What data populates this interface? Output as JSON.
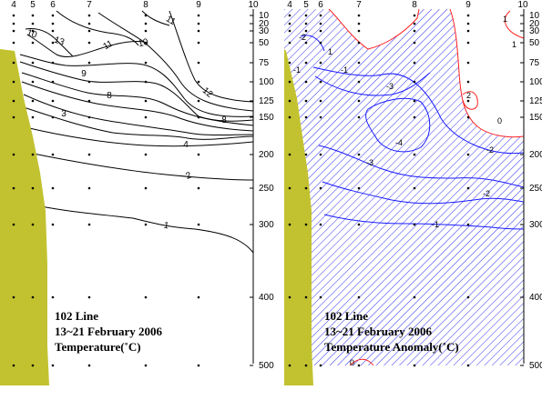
{
  "colors": {
    "land": "#c2c230",
    "temperature_contour": "#000000",
    "anomaly_negative": "#1a1aff",
    "anomaly_positive": "#ff2020",
    "anomaly_hatch": "#3333ee",
    "dots": "#000000"
  },
  "stations": [
    "4",
    "5",
    "6",
    "7",
    "8",
    "9",
    "10"
  ],
  "depth_ticks": [
    "10",
    "20",
    "30",
    "50",
    "75",
    "100",
    "125",
    "150",
    "200",
    "250",
    "300",
    "400",
    "500"
  ],
  "panels": {
    "temperature": {
      "caption_line1": "102 Line",
      "caption_line2": "13~21 February 2006",
      "caption_line3": "Temperature(˚C)",
      "contour_labels": [
        "13",
        "11",
        "11",
        "10",
        "10",
        "9",
        "8",
        "12",
        "8",
        "3",
        "4",
        "2",
        "1"
      ]
    },
    "anomaly": {
      "caption_line1": "102 Line",
      "caption_line2": "13~21 February 2006",
      "caption_line3": "Temperature Anomaly(˚C)",
      "negative_labels": [
        "-2",
        "-1",
        "-3",
        "-4",
        "-3",
        "-2",
        "-2",
        "-1",
        "-1"
      ],
      "positive_labels": [
        "1",
        "2",
        "0",
        "0",
        "1",
        "1"
      ]
    }
  }
}
